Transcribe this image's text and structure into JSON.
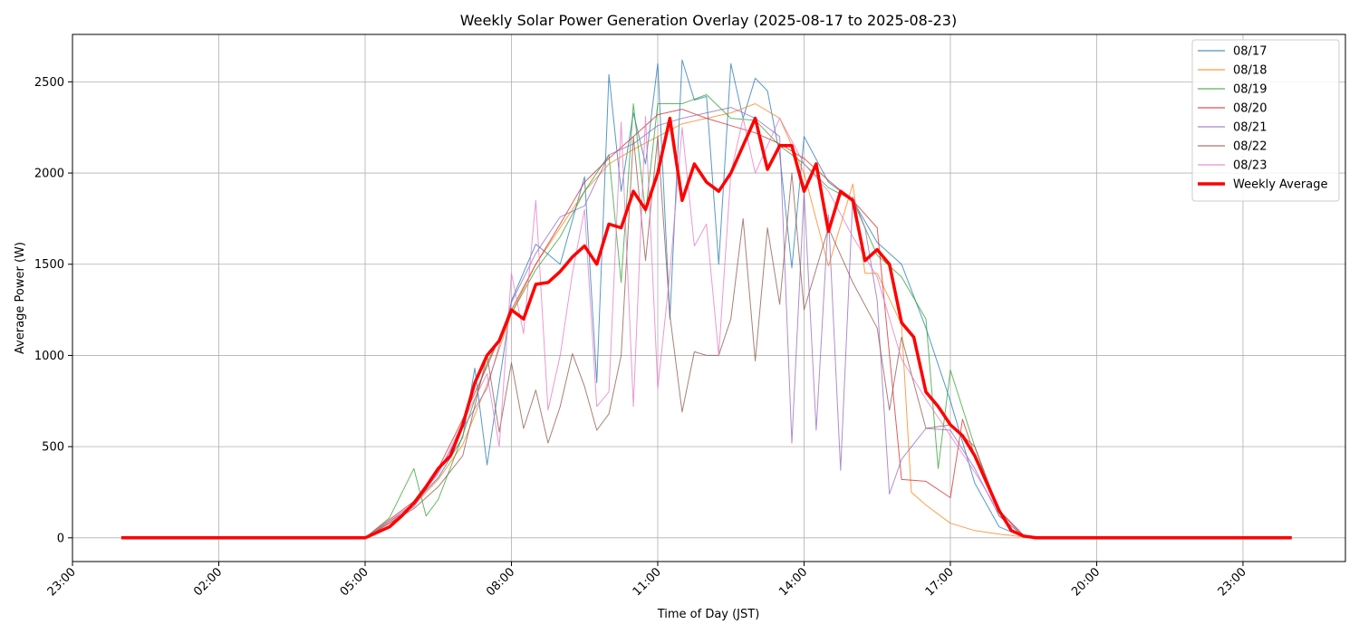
{
  "chart_data": {
    "type": "line",
    "title": "Weekly Solar Power Generation Overlay (2025-08-17 to 2025-08-23)",
    "xlabel": "Time of Day (JST)",
    "ylabel": "Average Power (W)",
    "x_unit": "hours",
    "xlim": [
      23.0,
      26.3
    ],
    "ylim": [
      -130,
      2760
    ],
    "x_ticks": [
      {
        "value": 23.0,
        "label": "23:00"
      },
      {
        "value": 26.0,
        "label": "02:00"
      },
      {
        "value": 29.0,
        "label": "05:00"
      },
      {
        "value": 32.0,
        "label": "08:00"
      },
      {
        "value": 35.0,
        "label": "11:00"
      },
      {
        "value": 38.0,
        "label": "14:00"
      },
      {
        "value": 41.0,
        "label": "17:00"
      },
      {
        "value": 44.0,
        "label": "20:00"
      },
      {
        "value": 47.0,
        "label": "23:00"
      }
    ],
    "y_ticks": [
      0,
      500,
      1000,
      1500,
      2000,
      2500
    ],
    "grid": true,
    "legend_position": "top-right",
    "series": [
      {
        "name": "08/17",
        "color": "#1f77b4",
        "x": [
          5.0,
          5.5,
          6.0,
          6.5,
          7.0,
          7.25,
          7.5,
          8.0,
          8.5,
          9.0,
          9.5,
          9.75,
          10.0,
          10.25,
          10.5,
          10.75,
          11.0,
          11.25,
          11.5,
          11.75,
          12.0,
          12.25,
          12.5,
          12.75,
          13.0,
          13.25,
          13.5,
          13.75,
          14.0,
          14.5,
          15.0,
          15.5,
          16.0,
          16.5,
          17.0,
          17.5,
          18.0,
          18.5,
          19.0
        ],
        "y": [
          0,
          90,
          190,
          330,
          550,
          930,
          400,
          1300,
          1610,
          1500,
          1980,
          850,
          2540,
          1900,
          2330,
          2050,
          2600,
          1200,
          2620,
          2400,
          2420,
          1500,
          2600,
          2300,
          2520,
          2450,
          2100,
          1480,
          2200,
          1950,
          1850,
          1620,
          1500,
          1150,
          750,
          300,
          60,
          5,
          0
        ]
      },
      {
        "name": "08/18",
        "color": "#ff7f0e",
        "x": [
          5.0,
          5.5,
          6.0,
          6.5,
          7.0,
          7.5,
          8.0,
          8.5,
          9.0,
          9.5,
          10.0,
          10.5,
          11.0,
          11.5,
          12.0,
          12.5,
          13.0,
          13.5,
          14.0,
          14.5,
          15.0,
          15.25,
          15.5,
          16.0,
          16.2,
          16.5,
          17.0,
          17.5,
          18.0,
          18.5,
          19.0
        ],
        "y": [
          0,
          80,
          180,
          320,
          510,
          840,
          1230,
          1500,
          1700,
          1900,
          2050,
          2130,
          2200,
          2270,
          2300,
          2330,
          2380,
          2300,
          2000,
          1490,
          1940,
          1450,
          1450,
          1170,
          250,
          180,
          80,
          40,
          20,
          5,
          0
        ]
      },
      {
        "name": "08/19",
        "color": "#2ca02c",
        "x": [
          5.0,
          5.5,
          6.0,
          6.25,
          6.5,
          7.0,
          7.5,
          8.0,
          8.5,
          9.0,
          9.5,
          10.0,
          10.25,
          10.5,
          10.75,
          11.0,
          11.5,
          12.0,
          12.5,
          13.0,
          13.5,
          14.0,
          14.5,
          15.0,
          15.5,
          16.0,
          16.5,
          16.75,
          17.0,
          17.5,
          18.0,
          18.5,
          19.0
        ],
        "y": [
          0,
          110,
          380,
          120,
          210,
          560,
          960,
          1230,
          1470,
          1650,
          1900,
          2100,
          1400,
          2380,
          1780,
          2380,
          2380,
          2430,
          2300,
          2290,
          2150,
          2050,
          1920,
          1850,
          1550,
          1430,
          1200,
          380,
          920,
          500,
          120,
          10,
          0
        ]
      },
      {
        "name": "08/20",
        "color": "#d62728",
        "x": [
          5.0,
          5.5,
          6.0,
          6.5,
          7.0,
          7.5,
          8.0,
          8.5,
          9.0,
          9.5,
          10.0,
          10.5,
          11.0,
          11.5,
          12.0,
          12.5,
          13.0,
          13.5,
          14.0,
          14.5,
          15.0,
          15.5,
          16.0,
          16.5,
          17.0,
          17.25,
          17.5,
          18.0,
          18.5,
          19.0
        ],
        "y": [
          0,
          100,
          200,
          380,
          650,
          940,
          1250,
          1500,
          1720,
          1950,
          2080,
          2200,
          2320,
          2350,
          2300,
          2260,
          2220,
          2160,
          2080,
          1960,
          1850,
          1700,
          320,
          310,
          220,
          650,
          450,
          150,
          15,
          0
        ]
      },
      {
        "name": "08/21",
        "color": "#9467bd",
        "x": [
          5.0,
          5.5,
          6.0,
          6.5,
          7.0,
          7.5,
          8.0,
          8.5,
          9.0,
          9.5,
          10.0,
          10.5,
          11.0,
          11.5,
          12.0,
          12.5,
          13.0,
          13.5,
          13.75,
          14.0,
          14.25,
          14.5,
          14.75,
          15.0,
          15.25,
          15.5,
          15.75,
          16.0,
          16.5,
          17.0,
          17.5,
          18.0,
          18.5,
          19.0
        ],
        "y": [
          0,
          90,
          170,
          360,
          600,
          820,
          1290,
          1560,
          1760,
          1820,
          2100,
          2160,
          2260,
          2300,
          2330,
          2360,
          2300,
          2200,
          520,
          1900,
          590,
          1770,
          370,
          1870,
          1700,
          1300,
          240,
          430,
          600,
          590,
          380,
          120,
          10,
          0
        ]
      },
      {
        "name": "08/22",
        "color": "#8c564b",
        "x": [
          5.0,
          5.5,
          6.0,
          6.5,
          7.0,
          7.5,
          7.75,
          8.0,
          8.25,
          8.5,
          8.75,
          9.0,
          9.25,
          9.5,
          9.75,
          10.0,
          10.25,
          10.5,
          10.75,
          11.0,
          11.25,
          11.5,
          11.75,
          12.0,
          12.25,
          12.5,
          12.75,
          13.0,
          13.25,
          13.5,
          13.75,
          14.0,
          14.5,
          15.0,
          15.5,
          15.75,
          16.0,
          16.5,
          17.0,
          17.5,
          18.0,
          18.5,
          19.0
        ],
        "y": [
          0,
          80,
          160,
          280,
          450,
          1000,
          580,
          960,
          600,
          810,
          520,
          720,
          1010,
          830,
          590,
          680,
          1000,
          2200,
          1520,
          2200,
          1220,
          690,
          1020,
          1000,
          1000,
          1200,
          1750,
          970,
          1700,
          1280,
          2000,
          1250,
          1700,
          1400,
          1150,
          700,
          1100,
          600,
          620,
          500,
          150,
          10,
          0
        ]
      },
      {
        "name": "08/23",
        "color": "#e377c2",
        "x": [
          5.0,
          5.5,
          6.0,
          6.5,
          7.0,
          7.5,
          7.75,
          8.0,
          8.25,
          8.5,
          8.75,
          9.0,
          9.25,
          9.5,
          9.75,
          10.0,
          10.25,
          10.5,
          10.75,
          11.0,
          11.25,
          11.5,
          11.75,
          12.0,
          12.25,
          12.5,
          12.75,
          13.0,
          13.5,
          14.0,
          14.5,
          15.0,
          15.5,
          16.0,
          16.5,
          17.0,
          17.5,
          18.0,
          18.5,
          19.0
        ],
        "y": [
          0,
          90,
          190,
          350,
          630,
          900,
          500,
          1450,
          1120,
          1850,
          700,
          1000,
          1450,
          1800,
          720,
          800,
          2280,
          720,
          2310,
          820,
          1450,
          2250,
          1600,
          1720,
          1000,
          2000,
          2300,
          2000,
          2300,
          2050,
          1900,
          1650,
          1430,
          980,
          760,
          560,
          360,
          140,
          10,
          0
        ]
      },
      {
        "name": "Weekly Average",
        "color": "#ff0000",
        "x": [
          0.0,
          5.0,
          5.25,
          5.5,
          5.75,
          6.0,
          6.25,
          6.5,
          6.75,
          7.0,
          7.25,
          7.5,
          7.75,
          8.0,
          8.25,
          8.5,
          8.75,
          9.0,
          9.25,
          9.5,
          9.75,
          10.0,
          10.25,
          10.5,
          10.75,
          11.0,
          11.25,
          11.5,
          11.75,
          12.0,
          12.25,
          12.5,
          12.75,
          13.0,
          13.25,
          13.5,
          13.75,
          14.0,
          14.25,
          14.5,
          14.75,
          15.0,
          15.25,
          15.5,
          15.75,
          16.0,
          16.25,
          16.5,
          16.75,
          17.0,
          17.25,
          17.5,
          17.75,
          18.0,
          18.25,
          18.5,
          18.75,
          19.0,
          24.0
        ],
        "y": [
          0,
          0,
          30,
          60,
          120,
          190,
          280,
          380,
          450,
          620,
          850,
          1000,
          1080,
          1250,
          1200,
          1390,
          1400,
          1460,
          1540,
          1600,
          1500,
          1720,
          1700,
          1900,
          1800,
          2000,
          2300,
          1850,
          2050,
          1950,
          1900,
          2000,
          2150,
          2300,
          2020,
          2150,
          2150,
          1900,
          2050,
          1680,
          1900,
          1850,
          1520,
          1580,
          1500,
          1180,
          1100,
          800,
          720,
          620,
          560,
          450,
          300,
          150,
          40,
          10,
          0,
          0,
          0
        ]
      }
    ]
  }
}
